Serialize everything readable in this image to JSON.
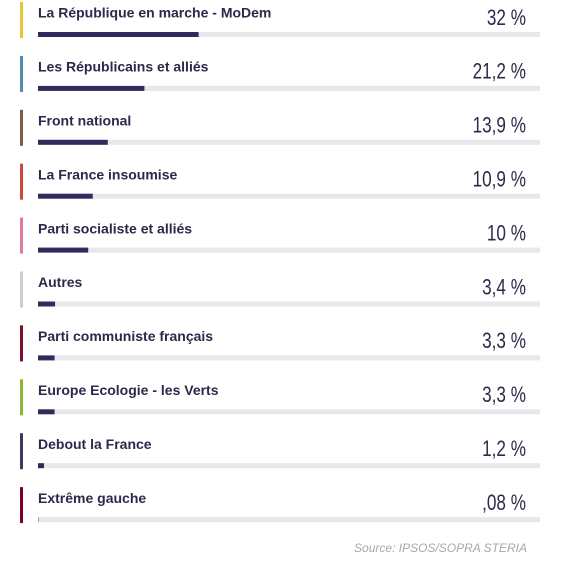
{
  "chart_data": {
    "type": "bar",
    "categories": [
      "La République en marche - MoDem",
      "Les Républicains et alliés",
      "Front national",
      "La France insoumise",
      "Parti socialiste et alliés",
      "Autres",
      "Parti communiste français",
      "Europe Ecologie - les Verts",
      "Debout la France",
      "Extrême gauche"
    ],
    "values": [
      32,
      21.2,
      13.9,
      10.9,
      10,
      3.4,
      3.3,
      3.3,
      1.2,
      0.08
    ],
    "value_labels": [
      "32 %",
      "21,2 %",
      "13,9 %",
      "10,9 %",
      "10 %",
      "3,4 %",
      "3,3 %",
      "3,3 %",
      "1,2 %",
      ",08 %"
    ],
    "colors": [
      "#e6c43c",
      "#4b8cab",
      "#7b5c4a",
      "#c9493a",
      "#e07b9b",
      "#cccccc",
      "#7a1022",
      "#8bb832",
      "#3b3b5b",
      "#800022"
    ],
    "color": "#2f2b5c",
    "xlim": [
      0,
      100
    ],
    "source": "Source: IPSOS/SOPRA STERIA"
  }
}
